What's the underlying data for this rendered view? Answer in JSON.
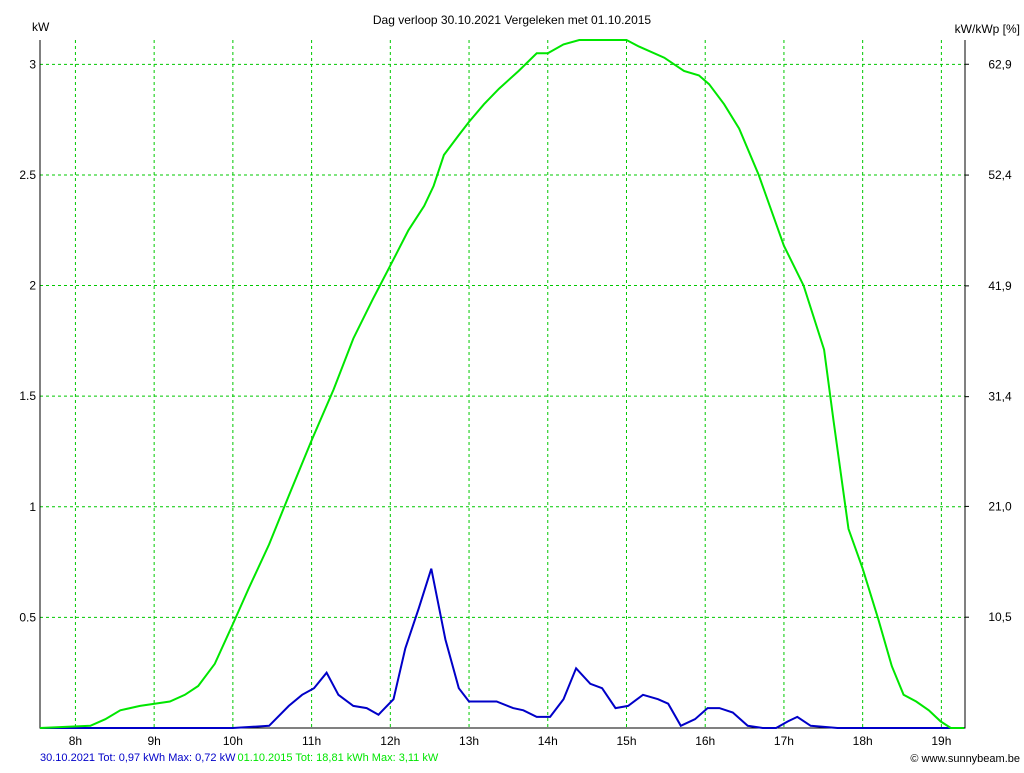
{
  "chart_data": {
    "type": "line",
    "title": "Dag  verloop 30.10.2021   Vergeleken met 01.10.2015",
    "y_label": "kW",
    "y2_label": "kW/kWp [%]",
    "source": "© www.sunnybeam.be",
    "xlim": [
      7.55,
      19.3
    ],
    "xticks": [
      {
        "value": 8,
        "label": "8h"
      },
      {
        "value": 9,
        "label": "9h"
      },
      {
        "value": 10,
        "label": "10h"
      },
      {
        "value": 11,
        "label": "11h"
      },
      {
        "value": 12,
        "label": "12h"
      },
      {
        "value": 13,
        "label": "13h"
      },
      {
        "value": 14,
        "label": "14h"
      },
      {
        "value": 15,
        "label": "15h"
      },
      {
        "value": 16,
        "label": "16h"
      },
      {
        "value": 17,
        "label": "17h"
      },
      {
        "value": 18,
        "label": "18h"
      },
      {
        "value": 19,
        "label": "19h"
      }
    ],
    "ylim": [
      0,
      3.11
    ],
    "yticks": [
      0.5,
      1,
      1.5,
      2,
      2.5,
      3
    ],
    "y2lim": [
      0,
      65.2
    ],
    "y2ticks": [
      {
        "value": 10.5,
        "label": "10,5"
      },
      {
        "value": 21.0,
        "label": "21,0"
      },
      {
        "value": 31.4,
        "label": "31,4"
      },
      {
        "value": 41.9,
        "label": "41,9"
      },
      {
        "value": 52.4,
        "label": "52,4"
      },
      {
        "value": 62.9,
        "label": "62,9"
      }
    ],
    "grid": true,
    "series": [
      {
        "name": "30.10.2021 Tot: 0,97 kWh Max: 0,72 kW",
        "color": "#0000c8",
        "x": [
          7.55,
          10.0,
          10.46,
          10.71,
          10.88,
          11.03,
          11.19,
          11.34,
          11.53,
          11.7,
          11.85,
          12.04,
          12.19,
          12.36,
          12.52,
          12.7,
          12.87,
          13.0,
          13.35,
          13.56,
          13.69,
          13.86,
          14.03,
          14.2,
          14.36,
          14.54,
          14.69,
          14.86,
          15.02,
          15.21,
          15.4,
          15.53,
          15.69,
          15.87,
          16.03,
          16.18,
          16.35,
          16.54,
          16.73,
          16.9,
          17.05,
          17.17,
          17.34,
          17.68,
          19.29
        ],
        "values": [
          0,
          0,
          0.01,
          0.1,
          0.15,
          0.18,
          0.25,
          0.15,
          0.1,
          0.09,
          0.06,
          0.13,
          0.36,
          0.54,
          0.72,
          0.4,
          0.18,
          0.12,
          0.12,
          0.09,
          0.08,
          0.05,
          0.05,
          0.13,
          0.27,
          0.2,
          0.18,
          0.09,
          0.1,
          0.15,
          0.13,
          0.11,
          0.01,
          0.04,
          0.09,
          0.09,
          0.07,
          0.01,
          0,
          0,
          0.03,
          0.05,
          0.01,
          0,
          0
        ]
      },
      {
        "name": "01.10.2015 Tot: 18,81 kWh Max: 3,11 kW",
        "color": "#00e600",
        "x": [
          7.55,
          8.19,
          8.38,
          8.57,
          8.82,
          9.2,
          9.39,
          9.56,
          9.77,
          10.0,
          10.2,
          10.46,
          10.71,
          11.0,
          11.28,
          11.53,
          11.78,
          12.0,
          12.23,
          12.43,
          12.55,
          12.68,
          12.87,
          13.0,
          13.19,
          13.38,
          13.63,
          13.86,
          14.0,
          14.2,
          14.4,
          14.66,
          15.0,
          15.16,
          15.48,
          15.73,
          15.92,
          16.05,
          16.24,
          16.43,
          16.68,
          17.0,
          17.25,
          17.51,
          17.63,
          17.82,
          18.0,
          18.2,
          18.37,
          18.52,
          18.68,
          18.84,
          18.99,
          19.12,
          19.29
        ],
        "values": [
          0,
          0.01,
          0.04,
          0.08,
          0.1,
          0.12,
          0.15,
          0.19,
          0.29,
          0.47,
          0.63,
          0.83,
          1.05,
          1.3,
          1.53,
          1.76,
          1.94,
          2.09,
          2.25,
          2.36,
          2.45,
          2.59,
          2.68,
          2.74,
          2.82,
          2.89,
          2.97,
          3.05,
          3.05,
          3.09,
          3.11,
          3.11,
          3.11,
          3.08,
          3.03,
          2.97,
          2.95,
          2.91,
          2.82,
          2.71,
          2.5,
          2.18,
          2.0,
          1.71,
          1.39,
          0.9,
          0.72,
          0.49,
          0.28,
          0.15,
          0.12,
          0.08,
          0.03,
          0,
          0
        ]
      }
    ]
  }
}
